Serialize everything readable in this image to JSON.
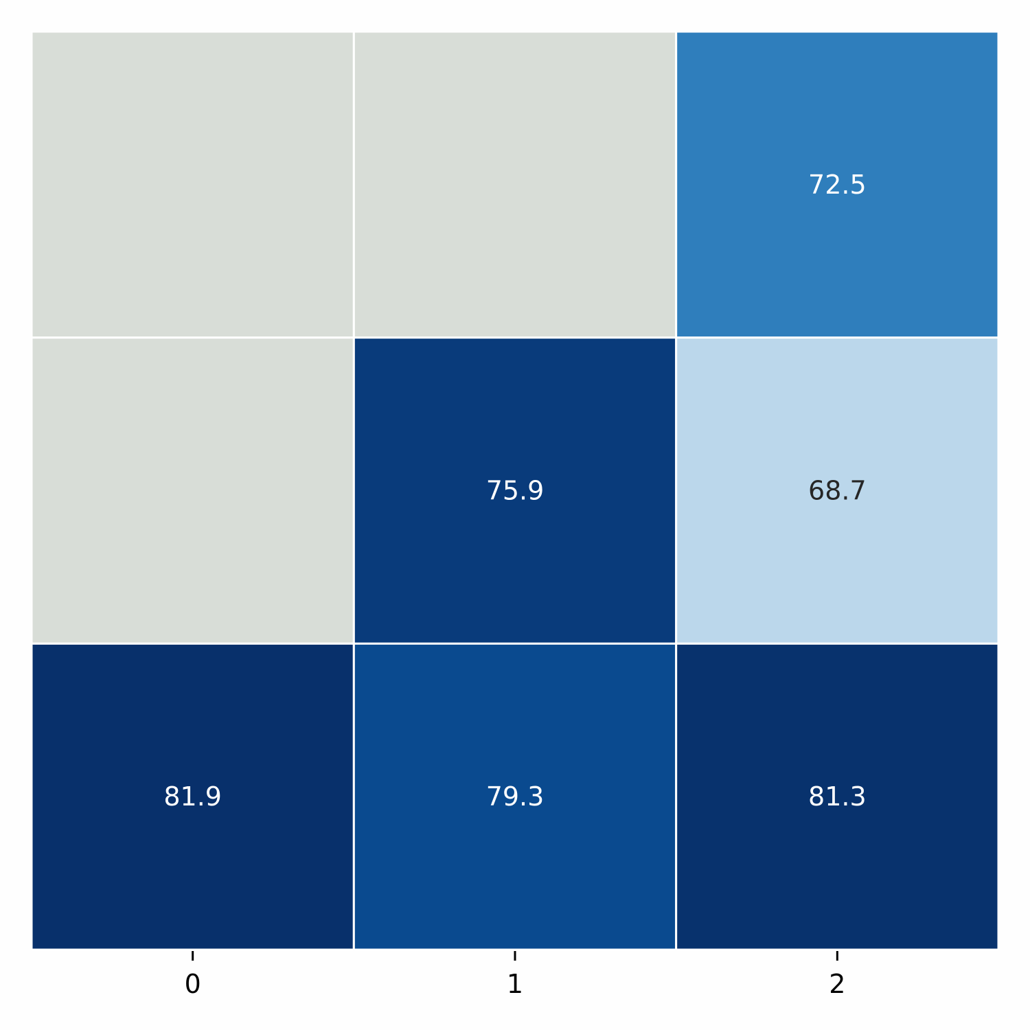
{
  "chart_data": {
    "type": "heatmap",
    "x_categories": [
      "0",
      "1",
      "2"
    ],
    "rows": [
      [
        null,
        null,
        72.5
      ],
      [
        null,
        75.9,
        68.7
      ],
      [
        81.9,
        79.3,
        81.3
      ]
    ],
    "cell_labels": [
      [
        "",
        "",
        "72.5"
      ],
      [
        "",
        "75.9",
        "68.7"
      ],
      [
        "81.9",
        "79.3",
        "81.3"
      ]
    ],
    "colors": [
      [
        "#d8ddd7",
        "#d8ddd7",
        "#2f7ebc"
      ],
      [
        "#d8ddd7",
        "#093b7b",
        "#bbd7eb"
      ],
      [
        "#08306b",
        "#0a4a8f",
        "#08326d"
      ]
    ],
    "label_colors": [
      [
        "#ffffff",
        "#ffffff",
        "#ffffff"
      ],
      [
        "#ffffff",
        "#ffffff",
        "#262626"
      ],
      [
        "#ffffff",
        "#ffffff",
        "#ffffff"
      ]
    ],
    "missing_color": "#d8ddd7",
    "colormap": "Blues",
    "cell_border_color": "#ffffff",
    "title": "",
    "xlabel": "",
    "ylabel": "",
    "y_tick_labels_shown": false,
    "colorbar_shown": false
  }
}
